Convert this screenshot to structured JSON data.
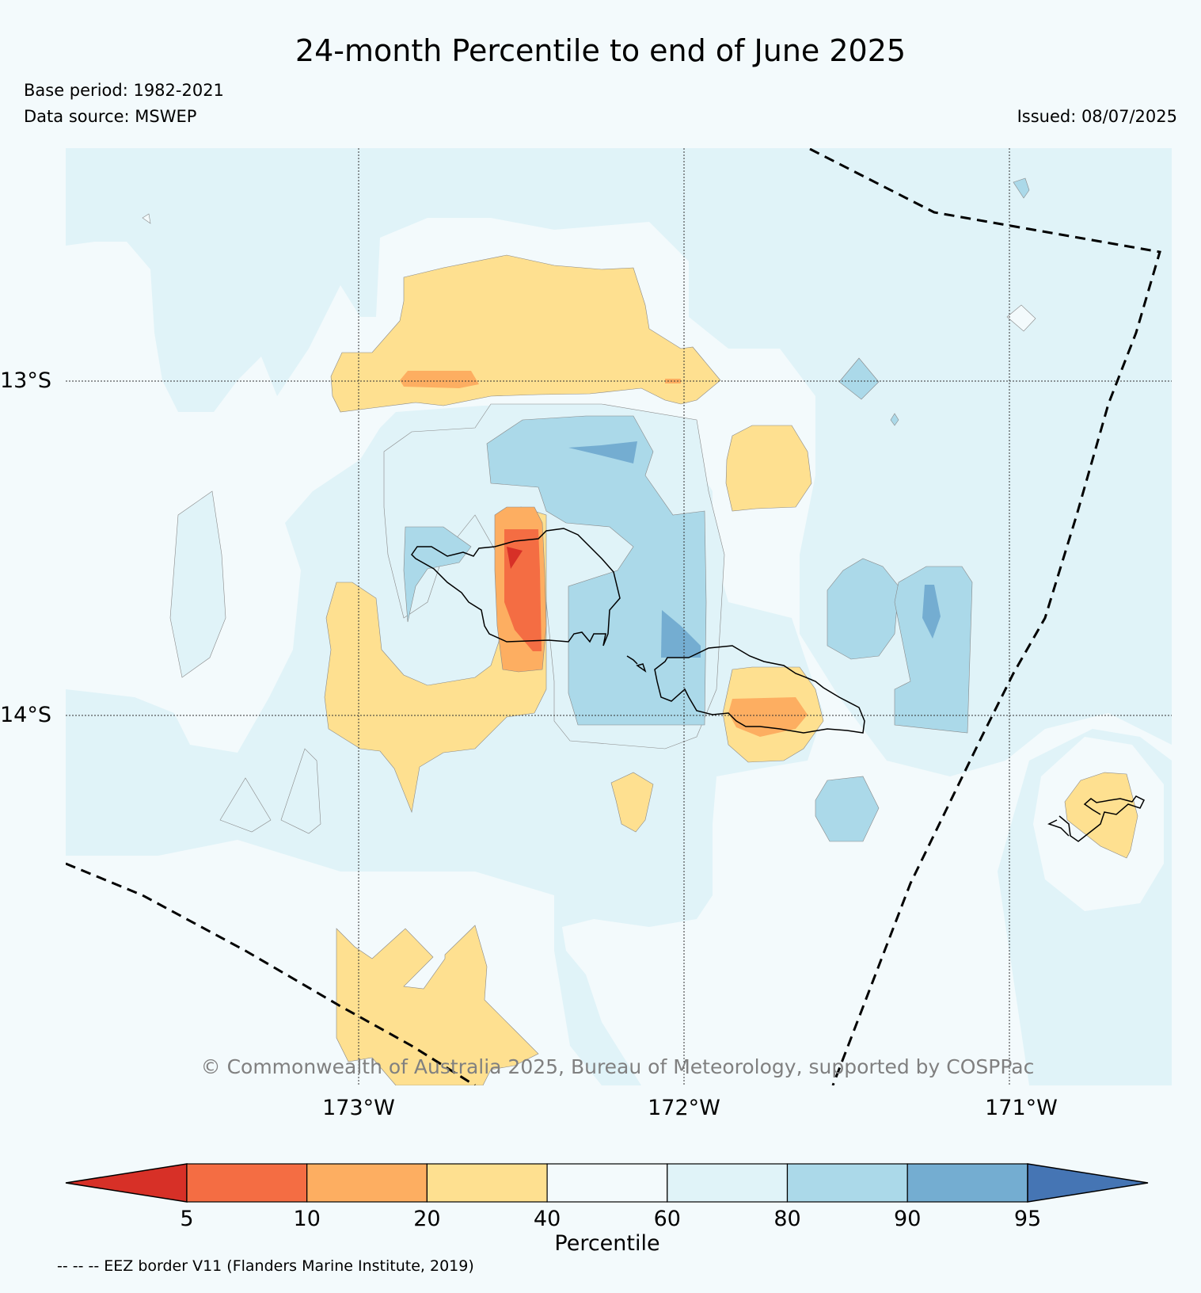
{
  "title": "24-month Percentile to end of June 2025",
  "base_period": "Base period: 1982-2021",
  "data_source": "Data source: MSWEP",
  "issued": "Issued: 08/07/2025",
  "copyright": "© Commonwealth of Australia 2025, Bureau of Meteorology, supported by COSPPac",
  "lat_labels": [
    "13°S",
    "14°S"
  ],
  "lon_labels": [
    "173°W",
    "172°W",
    "171°W"
  ],
  "colorbar": {
    "title": "Percentile",
    "ticks": [
      "5",
      "10",
      "20",
      "40",
      "60",
      "80",
      "90",
      "95"
    ],
    "colors": [
      "#d73027",
      "#f46d43",
      "#fdae61",
      "#fee090",
      "#f3fafc",
      "#e0f3f8",
      "#abd9e9",
      "#74add1",
      "#4575b4"
    ]
  },
  "eez_note": "-- -- -- EEZ border V11 (Flanders Marine Institute, 2019)"
}
